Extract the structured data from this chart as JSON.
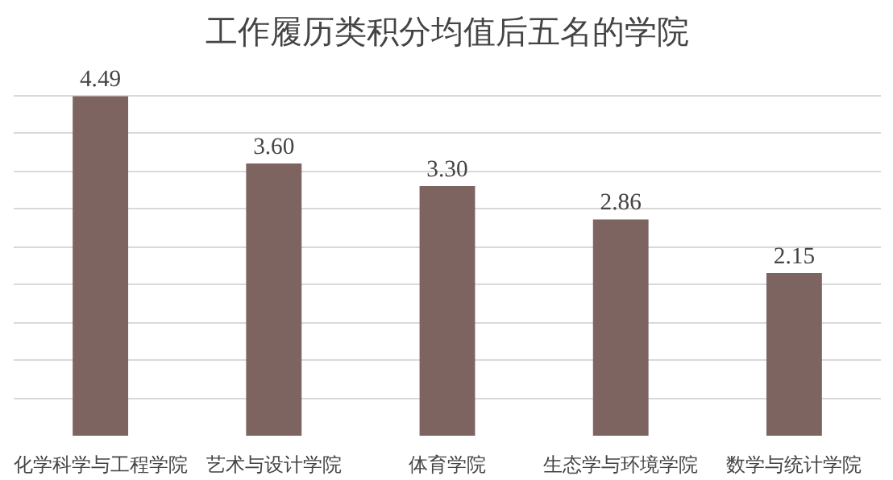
{
  "chart_data": {
    "type": "bar",
    "title": "工作履历类积分均值后五名的学院",
    "categories": [
      "化学科学与工程学院",
      "艺术与设计学院",
      "体育学院",
      "生态学与环境学院",
      "数学与统计学院"
    ],
    "values": [
      4.49,
      3.6,
      3.3,
      2.86,
      2.15
    ],
    "color": "#7d6460",
    "value_labels": [
      "4.49",
      "3.60",
      "3.30",
      "2.86",
      "2.15"
    ],
    "grid": "y",
    "tick_labels": "x"
  }
}
